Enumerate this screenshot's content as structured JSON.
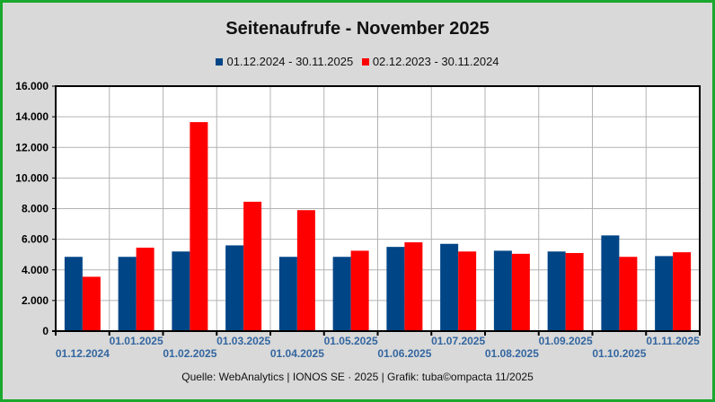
{
  "title": "Seitenaufrufe - November 2025",
  "footer": "Quelle: WebAnalytics | IONOS SE · 2025 | Grafik: tuba©ompacta 11/2025",
  "colors": {
    "series1": "#004586",
    "series2": "#ff0000",
    "frame": "#1aa82e",
    "background": "#d9d9d9",
    "date_labels": "#3366a0"
  },
  "chart_data": {
    "type": "bar",
    "title": "Seitenaufrufe - November 2025",
    "legend": "top-center",
    "grid": true,
    "ylim": [
      0,
      16000
    ],
    "yticks": [
      "0",
      "2.000",
      "4.000",
      "6.000",
      "8.000",
      "10.000",
      "12.000",
      "14.000",
      "16.000"
    ],
    "categories": [
      "01.12.2024",
      "01.01.2025",
      "01.02.2025",
      "01.03.2025",
      "01.04.2025",
      "01.05.2025",
      "01.06.2025",
      "01.07.2025",
      "01.08.2025",
      "01.09.2025",
      "01.10.2025",
      "01.11.2025"
    ],
    "series": [
      {
        "name": "01.12.2024 - 30.11.2025",
        "values": [
          4850,
          4850,
          5200,
          5600,
          4850,
          4850,
          5500,
          5700,
          5250,
          5200,
          6250,
          4900
        ]
      },
      {
        "name": "02.12.2023 - 30.11.2024",
        "values": [
          3550,
          5450,
          13650,
          8450,
          7900,
          5250,
          5800,
          5200,
          5050,
          5100,
          4850,
          5150
        ]
      }
    ]
  }
}
